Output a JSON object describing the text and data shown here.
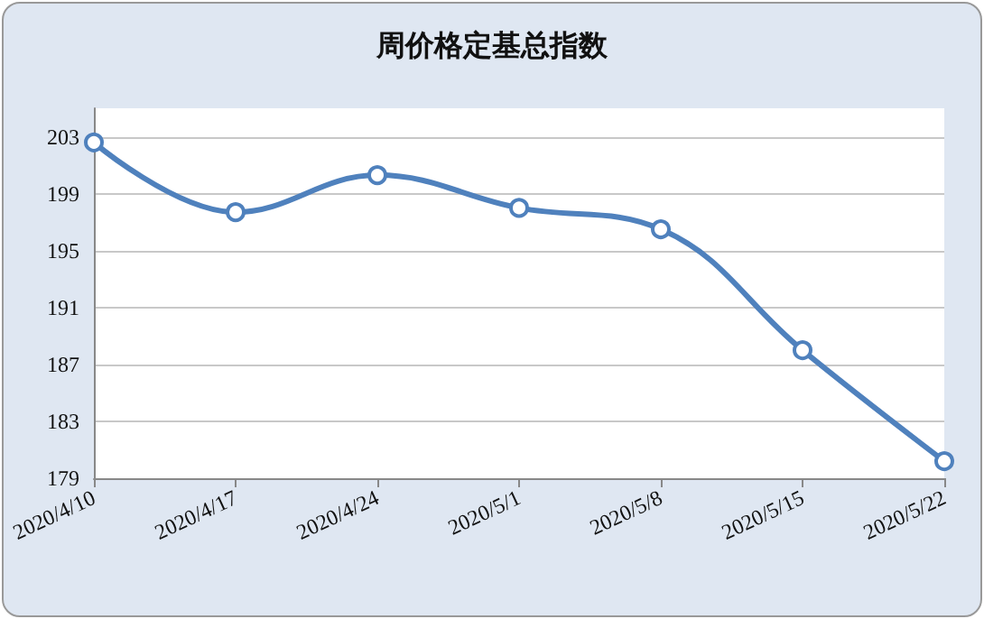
{
  "chart_data": {
    "type": "line",
    "title": "周价格定基总指数",
    "categories": [
      "2020/4/10",
      "2020/4/17",
      "2020/4/24",
      "2020/5/1",
      "2020/5/8",
      "2020/5/15",
      "2020/5/22"
    ],
    "series": [
      {
        "color": "#4f81bd",
        "values": [
          202.6,
          197.7,
          200.3,
          198.0,
          196.5,
          188.0,
          180.2
        ]
      }
    ],
    "ylim": [
      179,
      205
    ],
    "yticks": [
      179,
      183,
      187,
      191,
      195,
      199,
      203
    ],
    "grid": "y",
    "marker": "circle",
    "line_style": "solid"
  }
}
